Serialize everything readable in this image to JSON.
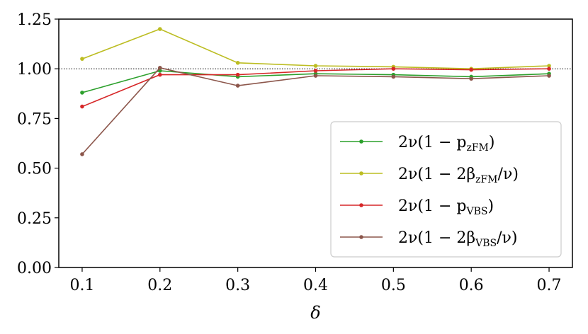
{
  "chart_data": {
    "type": "line",
    "title": "",
    "xlabel": "δ",
    "ylabel": "",
    "x": [
      0.1,
      0.2,
      0.3,
      0.4,
      0.5,
      0.6,
      0.7
    ],
    "x_tick_labels": [
      "0.1",
      "0.2",
      "0.3",
      "0.4",
      "0.5",
      "0.6",
      "0.7"
    ],
    "xlim": [
      0.07,
      0.73
    ],
    "ylim": [
      0.0,
      1.25
    ],
    "y_ticks": [
      0.0,
      0.25,
      0.5,
      0.75,
      1.0,
      1.25
    ],
    "y_tick_labels": [
      "0.00",
      "0.25",
      "0.50",
      "0.75",
      "1.00",
      "1.25"
    ],
    "reference_line": {
      "y": 1.0,
      "style": "dotted"
    },
    "grid": false,
    "legend_position": "lower-right",
    "series": [
      {
        "name": "2ν(1 − p_zFM)",
        "legend_main": "2ν(1 − p",
        "legend_sub": "zFM",
        "legend_tail": ")",
        "color": "#2ca02c",
        "values": [
          0.88,
          0.99,
          0.96,
          0.975,
          0.97,
          0.96,
          0.975
        ]
      },
      {
        "name": "2ν(1 − 2β_zFM/ν)",
        "legend_main": "2ν(1 − 2β",
        "legend_sub": "zFM",
        "legend_tail": "/ν)",
        "color": "#bcbd22",
        "values": [
          1.05,
          1.2,
          1.03,
          1.015,
          1.01,
          1.0,
          1.015
        ]
      },
      {
        "name": "2ν(1 − p_VBS)",
        "legend_main": "2ν(1 − p",
        "legend_sub": "VBS",
        "legend_tail": ")",
        "color": "#d62728",
        "values": [
          0.81,
          0.97,
          0.97,
          0.99,
          1.0,
          0.995,
          1.0
        ]
      },
      {
        "name": "2ν(1 − 2β_VBS/ν)",
        "legend_main": "2ν(1 − 2β",
        "legend_sub": "VBS",
        "legend_tail": "/ν)",
        "color": "#8c564b",
        "values": [
          0.57,
          1.005,
          0.915,
          0.965,
          0.96,
          0.95,
          0.965
        ]
      }
    ]
  }
}
